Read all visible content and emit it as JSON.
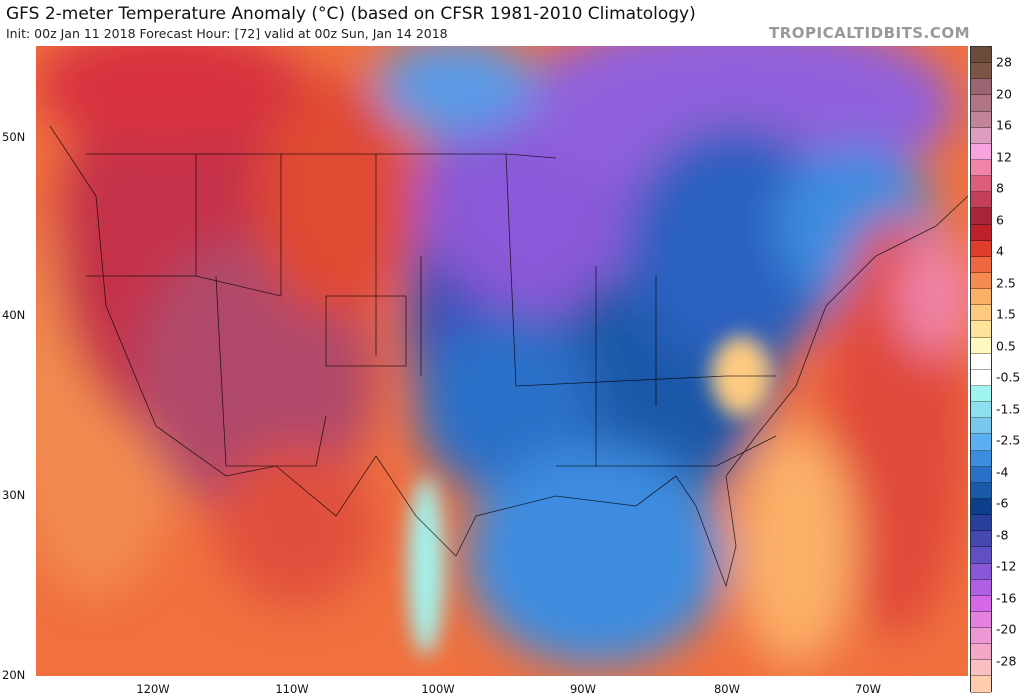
{
  "header": {
    "title": "GFS 2-meter Temperature Anomaly (°C) (based on CFSR 1981-2010 Climatology)",
    "subtitle": "Init: 00z Jan 11 2018   Forecast Hour: [72]   valid at 00z Sun, Jan 14 2018",
    "brand": "TROPICALTIDBITS.COM"
  },
  "axes": {
    "lat": [
      "50N",
      "40N",
      "30N",
      "20N"
    ],
    "lon": [
      "120W",
      "110W",
      "100W",
      "90W",
      "80W",
      "70W"
    ]
  },
  "colorbar": {
    "labels": [
      "28",
      "20",
      "16",
      "12",
      "8",
      "6",
      "4",
      "2.5",
      "1.5",
      "0.5",
      "-0.5",
      "-1.5",
      "-2.5",
      "-4",
      "-6",
      "-8",
      "-12",
      "-16",
      "-20",
      "-28"
    ],
    "colors": [
      "#6b4c3b",
      "#7d5545",
      "#9a6470",
      "#b07585",
      "#c28499",
      "#dc9dc0",
      "#f6a3e0",
      "#ef83a8",
      "#dc5e78",
      "#c44058",
      "#a82438",
      "#c0202a",
      "#e03c2c",
      "#f06640",
      "#f68b50",
      "#fbb068",
      "#fdca80",
      "#fde39a",
      "#fff6c0",
      "#ffffff",
      "#ffffff",
      "#a0f4f0",
      "#8ce0f0",
      "#78c8ee",
      "#5ab0f0",
      "#3c8ce0",
      "#2a70c8",
      "#1a58a8",
      "#0c3e8c",
      "#28409c",
      "#4448b0",
      "#6050c4",
      "#8858d8",
      "#b060e4",
      "#d468e8",
      "#e480e0",
      "#ec98d4",
      "#f4a8c8",
      "#f8c0c0",
      "#ffccb0"
    ]
  }
}
